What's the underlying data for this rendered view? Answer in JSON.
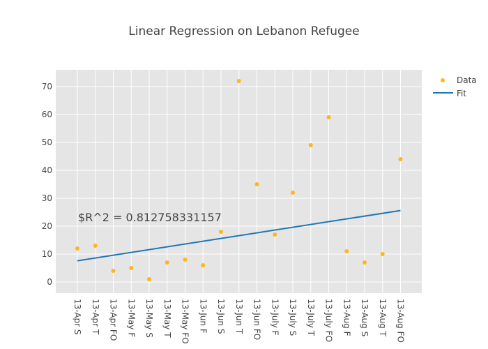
{
  "chart_data": {
    "type": "scatter",
    "title": "Linear Regression on Lebanon Refugee",
    "categories": [
      "13-Apr S",
      "13-Apr T",
      "13-Apr FO",
      "13-May F",
      "13-May S",
      "13-May T",
      "13-May FO",
      "13-Jun F",
      "13-Jun S",
      "13-Jun T",
      "13-Jun FO",
      "13-July F",
      "13-July S",
      "13-July T",
      "13-July FO",
      "13-Aug F",
      "13-Aug S",
      "13-Aug T",
      "13-Aug FO"
    ],
    "yticks": [
      0,
      10,
      20,
      30,
      40,
      50,
      60,
      70
    ],
    "ylim": [
      -4,
      76
    ],
    "grid": true,
    "legend_position": "top-right",
    "series": [
      {
        "name": "Data",
        "kind": "markers",
        "color": "#FFB61E",
        "values": [
          12,
          13,
          4,
          5,
          1,
          7,
          8,
          6,
          18,
          72,
          35,
          17,
          32,
          49,
          59,
          11,
          7,
          10,
          44
        ]
      },
      {
        "name": "Fit",
        "kind": "line",
        "color": "#1F77B4",
        "start": 7.6,
        "end": 25.6
      }
    ],
    "annotation": "$R^2 = 0.812758331157"
  }
}
